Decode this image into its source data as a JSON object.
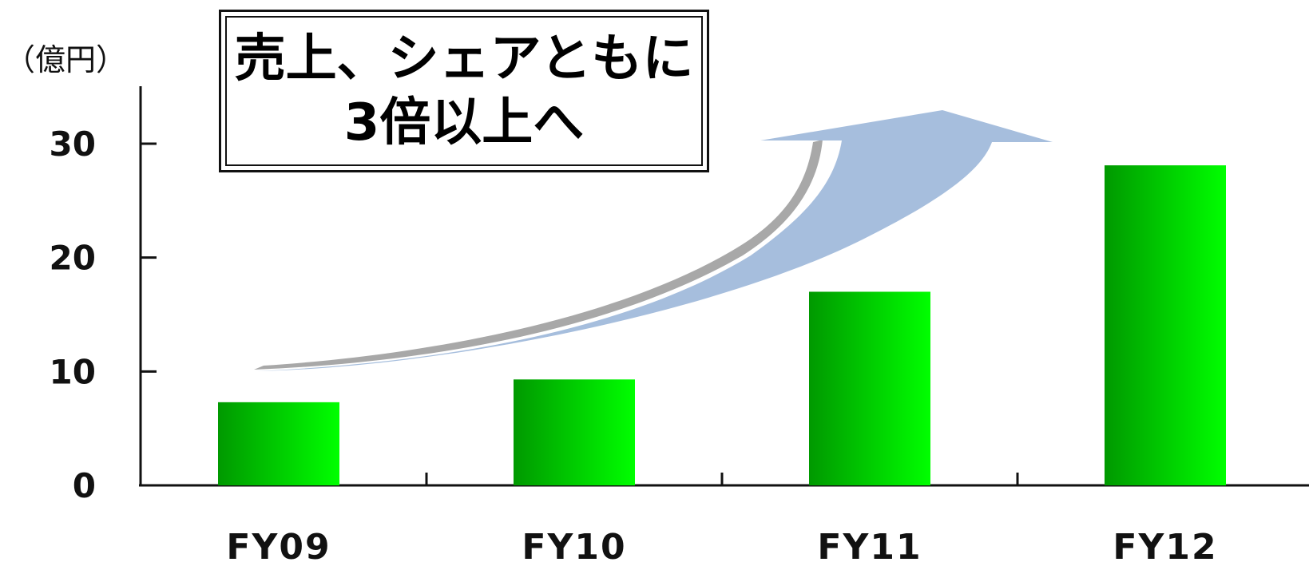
{
  "unit_label": "（億円）",
  "headline": {
    "line1": "売上、シェアともに",
    "line2": "3倍以上へ"
  },
  "colors": {
    "bar_dark": "#009900",
    "bar_light": "#00ff00",
    "arrow_fill": "#a6bedd",
    "arrow_shadow": "#a8a8a8",
    "axis": "#111111"
  },
  "chart_data": {
    "type": "bar",
    "title": "",
    "xlabel": "",
    "ylabel": "（億円）",
    "categories": [
      "FY09",
      "FY10",
      "FY11",
      "FY12"
    ],
    "values": [
      7.3,
      9.3,
      17.0,
      28.1
    ],
    "ylim": [
      0,
      30
    ],
    "yticks": [
      0,
      10,
      20,
      30
    ],
    "grid": false,
    "annotation": "売上、シェアともに 3倍以上へ"
  }
}
